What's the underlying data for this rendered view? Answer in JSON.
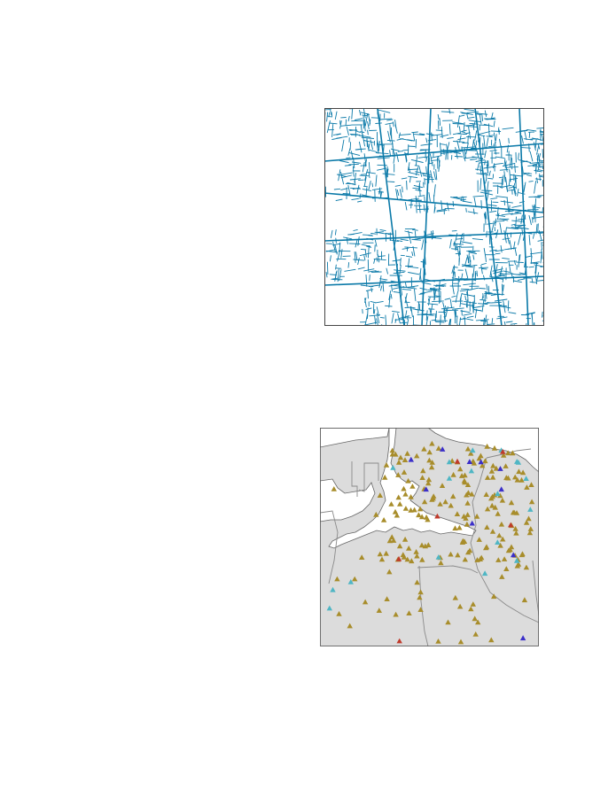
{
  "colors": {
    "page_background": "#ffffff",
    "street_lines": "#0a79a8",
    "land_fill": "#dcdcdc",
    "boundary_lines": "#808080",
    "water": "#ffffff",
    "frame": "#333333"
  },
  "legend_categories": [
    {
      "key": "olive",
      "color": "#a88d2b"
    },
    {
      "key": "cyan",
      "color": "#4fb6c4"
    },
    {
      "key": "blue",
      "color": "#3b2fc9"
    },
    {
      "key": "red",
      "color": "#c03a2b"
    }
  ],
  "point_counts": {
    "olive": 210,
    "cyan": 18,
    "blue": 10,
    "red": 6
  }
}
